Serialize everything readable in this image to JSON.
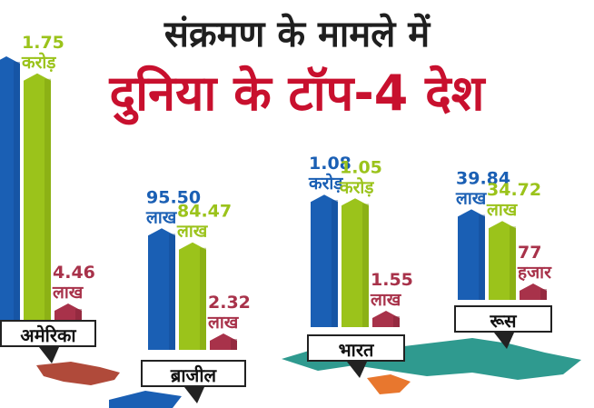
{
  "title_line1": "संक्रमण के मामले में",
  "title_line2": "दुनिया के टॉप-4 देश",
  "colors": {
    "blue": "#1a5fb4",
    "green": "#9bc31b",
    "maroon": "#a8324a",
    "map": "#2f9a8f"
  },
  "chart_data": {
    "type": "bar",
    "categories": [
      "अमेरिका",
      "ब्राजील",
      "भारत",
      "रूस"
    ],
    "series": [
      {
        "values_lakh": [
          null,
          95.5,
          108,
          39.84
        ]
      },
      {
        "values_lakh": [
          175,
          84.47,
          105,
          34.72
        ]
      },
      {
        "values_lakh": [
          4.46,
          2.32,
          1.55,
          0.77
        ]
      }
    ],
    "labels": [
      [
        "",
        "95.50 लाख",
        "1.08 करोड़",
        "39.84 लाख"
      ],
      [
        "1.75 करोड़",
        "84.47 लाख",
        "1.05 करोड़",
        "34.72 लाख"
      ],
      [
        "4.46 लाख",
        "2.32 लाख",
        "1.55 लाख",
        "77 हजार"
      ]
    ]
  }
}
